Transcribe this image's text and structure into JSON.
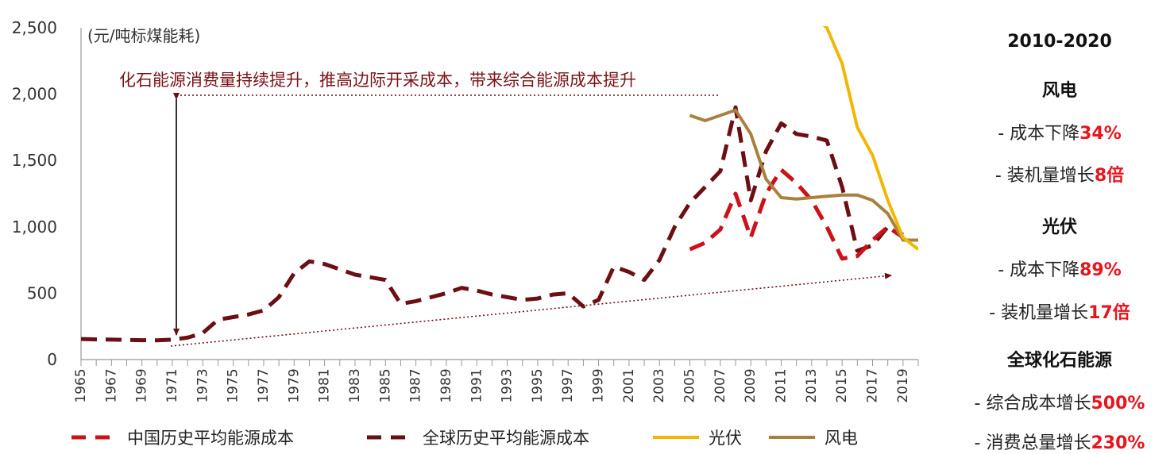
{
  "chart_data": {
    "type": "line",
    "unit_label": "(元/吨标煤能耗)",
    "annotation": "化石能源消费量持续提升，推高边际开采成本，带来综合能源成本提升",
    "ylim": [
      0,
      2500
    ],
    "yticks": [
      "0",
      "500",
      "1,000",
      "1,500",
      "2,000",
      "2,500"
    ],
    "ytick_values": [
      0,
      500,
      1000,
      1500,
      2000,
      2500
    ],
    "xlim": [
      1965,
      2020
    ],
    "xtick_labels": [
      "1965",
      "1967",
      "1969",
      "1971",
      "1973",
      "1975",
      "1977",
      "1979",
      "1981",
      "1983",
      "1985",
      "1987",
      "1989",
      "1991",
      "1993",
      "1995",
      "1997",
      "1999",
      "2001",
      "2003",
      "2005",
      "2007",
      "2009",
      "2011",
      "2013",
      "2015",
      "2017",
      "2019"
    ],
    "legend_position": "bottom",
    "series": [
      {
        "name": "中国历史平均能源成本",
        "style": "dashed",
        "color": "#cc1119",
        "x": [
          2005,
          2006,
          2007,
          2008,
          2009,
          2010,
          2011,
          2012,
          2013,
          2014,
          2015,
          2016,
          2017,
          2018,
          2019
        ],
        "y": [
          830,
          880,
          980,
          1250,
          920,
          1250,
          1430,
          1330,
          1200,
          1000,
          760,
          780,
          900,
          1000,
          920
        ]
      },
      {
        "name": "全球历史平均能源成本",
        "style": "dashed",
        "color": "#6b0f14",
        "x": [
          1965,
          1966,
          1967,
          1968,
          1969,
          1970,
          1971,
          1972,
          1973,
          1974,
          1975,
          1976,
          1977,
          1978,
          1979,
          1980,
          1981,
          1982,
          1983,
          1984,
          1985,
          1986,
          1987,
          1988,
          1989,
          1990,
          1991,
          1992,
          1993,
          1994,
          1995,
          1996,
          1997,
          1998,
          1999,
          2000,
          2001,
          2002,
          2003,
          2004,
          2005,
          2006,
          2007,
          2008,
          2009,
          2010,
          2011,
          2012,
          2013,
          2014,
          2015,
          2016,
          2017,
          2018,
          2019
        ],
        "y": [
          155,
          152,
          150,
          148,
          146,
          145,
          150,
          165,
          200,
          300,
          320,
          340,
          370,
          470,
          650,
          740,
          720,
          680,
          640,
          620,
          600,
          420,
          440,
          470,
          500,
          540,
          520,
          490,
          470,
          450,
          460,
          490,
          500,
          400,
          450,
          700,
          660,
          600,
          750,
          1000,
          1180,
          1300,
          1420,
          1900,
          1200,
          1570,
          1780,
          1700,
          1680,
          1650,
          1300,
          820,
          860,
          1000,
          940
        ]
      },
      {
        "name": "光伏",
        "style": "solid",
        "color": "#f2b705",
        "x": [
          2013,
          2014,
          2015,
          2016,
          2017,
          2018,
          2019,
          2020
        ],
        "y": [
          2600,
          2500,
          2230,
          1750,
          1540,
          1200,
          920,
          830
        ]
      },
      {
        "name": "风电",
        "style": "solid",
        "color": "#a8813f",
        "x": [
          2005,
          2006,
          2007,
          2008,
          2009,
          2010,
          2011,
          2012,
          2013,
          2014,
          2015,
          2016,
          2017,
          2018,
          2019,
          2020
        ],
        "y": [
          1840,
          1800,
          1840,
          1880,
          1700,
          1360,
          1220,
          1210,
          1220,
          1230,
          1240,
          1240,
          1200,
          1100,
          900,
          900
        ]
      }
    ]
  },
  "side_panel": {
    "period": "2010-2020",
    "wind_title": "风电",
    "wind_cost_label": "- 成本下降",
    "wind_cost_value": "34%",
    "wind_capacity_label": "- 装机量增长",
    "wind_capacity_value": "8倍",
    "pv_title": "光伏",
    "pv_cost_label": "- 成本下降",
    "pv_cost_value": "89%",
    "pv_capacity_label": "- 装机量增长",
    "pv_capacity_value": "17倍",
    "fossil_title": "全球化石能源",
    "fossil_cost_label": "- 综合成本增长",
    "fossil_cost_value": "500%",
    "fossil_total_label": "- 消费总量增长",
    "fossil_total_value": "230%"
  }
}
